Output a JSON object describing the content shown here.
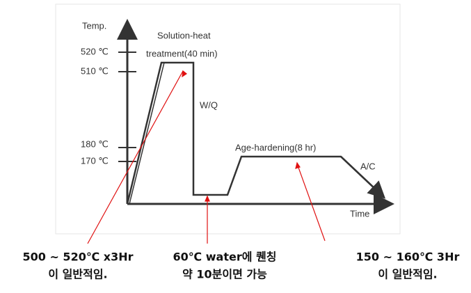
{
  "diagram": {
    "axis": {
      "y_label": "Temp.",
      "x_label": "Time"
    },
    "ticks": [
      "520 ℃",
      "510 ℃",
      "180 ℃",
      "170 ℃"
    ],
    "stages": [
      "Solution-heat",
      "treatment(40 min)",
      "W/Q",
      "Age-hardening(8 hr)",
      "A/C"
    ],
    "notes": [
      {
        "line1": "500 ~ 520℃ x3Hr",
        "line2": "이  일반적임."
      },
      {
        "line1": "60℃  water에 퀜칭",
        "line2": "약 10분이면 가능"
      },
      {
        "line1": "150 ~ 160℃  3Hr",
        "line2": "이  일반적임."
      }
    ]
  }
}
